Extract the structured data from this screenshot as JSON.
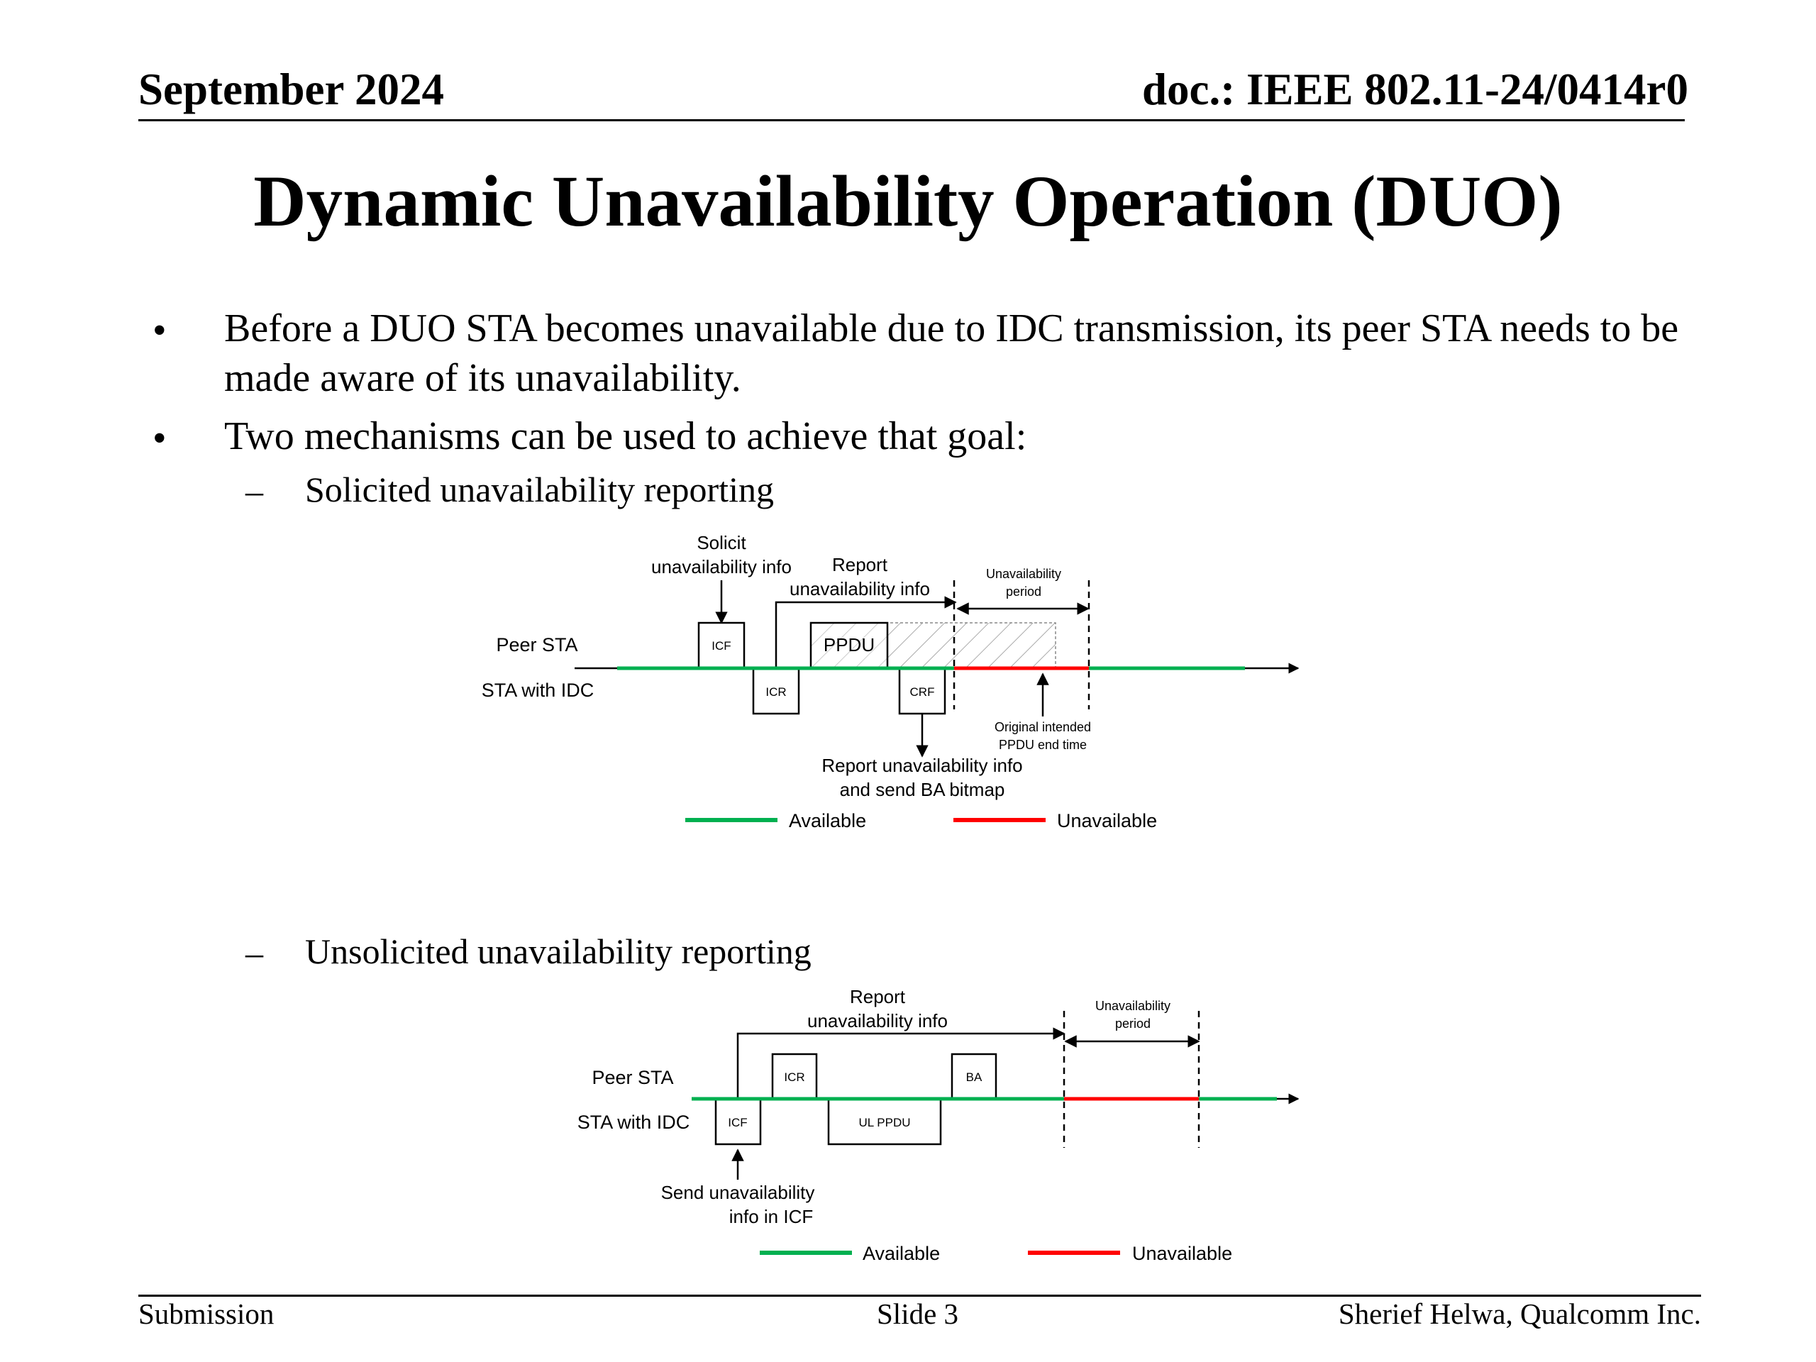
{
  "header": {
    "date": "September 2024",
    "doc": "doc.: IEEE 802.11-24/0414r0"
  },
  "title": "Dynamic Unavailability Operation (DUO)",
  "bullets": [
    {
      "marker": "•",
      "text": "Before a DUO STA becomes unavailable due to IDC transmission, its peer STA needs to be made aware of its unavailability."
    },
    {
      "marker": "•",
      "text": "Two mechanisms can be used to achieve that goal:"
    }
  ],
  "sub_bullets": [
    {
      "marker": "–",
      "text": "Solicited unavailability reporting"
    },
    {
      "marker": "–",
      "text": "Unsolicited unavailability reporting"
    }
  ],
  "diagram1": {
    "solicit_line1": "Solicit",
    "solicit_line2": "unavailability info",
    "report_line1": "Report",
    "report_line2": "unavailability info",
    "period_line1": "Unavailability",
    "period_line2": "period",
    "peer_label": "Peer STA",
    "sta_label": "STA with IDC",
    "icf": "ICF",
    "ppdu": "PPDU",
    "icr": "ICR",
    "crf": "CRF",
    "orig_line1": "Original intended",
    "orig_line2": "PPDU end time",
    "crf_note_line1": "Report unavailability info",
    "crf_note_line2": "and send BA bitmap",
    "legend_available": "Available",
    "legend_unavailable": "Unavailable"
  },
  "diagram2": {
    "report_line1": "Report",
    "report_line2": "unavailability info",
    "period_line1": "Unavailability",
    "period_line2": "period",
    "peer_label": "Peer STA",
    "sta_label": "STA with IDC",
    "icr": "ICR",
    "ba": "BA",
    "icf": "ICF",
    "ul_ppdu": "UL PPDU",
    "send_line1": "Send unavailability",
    "send_line2": "info in ICF",
    "legend_available": "Available",
    "legend_unavailable": "Unavailable"
  },
  "colors": {
    "available": "#00b050",
    "unavailable": "#ff0000"
  },
  "footer": {
    "left": "Submission",
    "center": "Slide 3",
    "right": "Sherief Helwa, Qualcomm Inc."
  }
}
